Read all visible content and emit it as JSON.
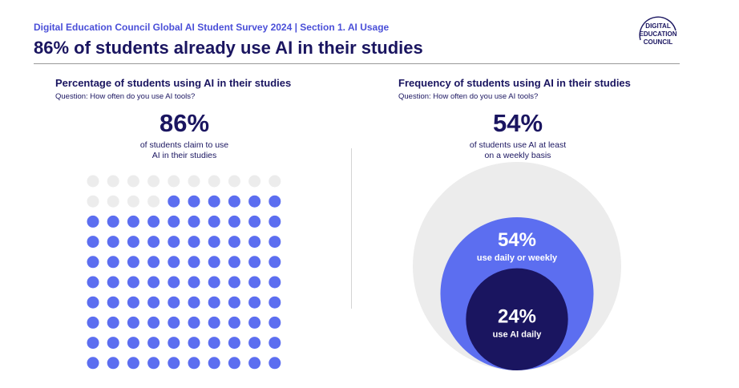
{
  "header": {
    "kicker": "Digital Education Council Global AI Student Survey 2024 | Section 1. AI Usage",
    "title": "86% of students already use AI in their studies",
    "logo_text": [
      "DIGITAL",
      "EDUCATION",
      "COUNCIL"
    ]
  },
  "left_panel": {
    "title": "Percentage of students using AI in their studies",
    "question": "Question: How often do you use AI tools?",
    "stat": "86%",
    "caption_line1": "of students claim to use",
    "caption_line2": "AI in their studies"
  },
  "right_panel": {
    "title": "Frequency of students using AI in their studies",
    "question": "Question: How often do you use AI tools?",
    "stat": "54%",
    "caption_line1": "of students use AI at least",
    "caption_line2": "on a weekly basis"
  },
  "colors": {
    "accent": "#5c6ef0",
    "dark": "#1a1560",
    "inactive": "#ececec",
    "kicker": "#4a4fd8"
  },
  "chart_data": [
    {
      "type": "waffle",
      "rows": 10,
      "cols": 10,
      "filled": 86,
      "total": 100,
      "fill_from": "bottom"
    },
    {
      "type": "nested-circles",
      "segments": [
        {
          "value": 100,
          "value_label": "",
          "label": ""
        },
        {
          "value": 54,
          "value_label": "54%",
          "label": "use daily or weekly"
        },
        {
          "value": 24,
          "value_label": "24%",
          "label": "use AI daily"
        }
      ]
    }
  ]
}
